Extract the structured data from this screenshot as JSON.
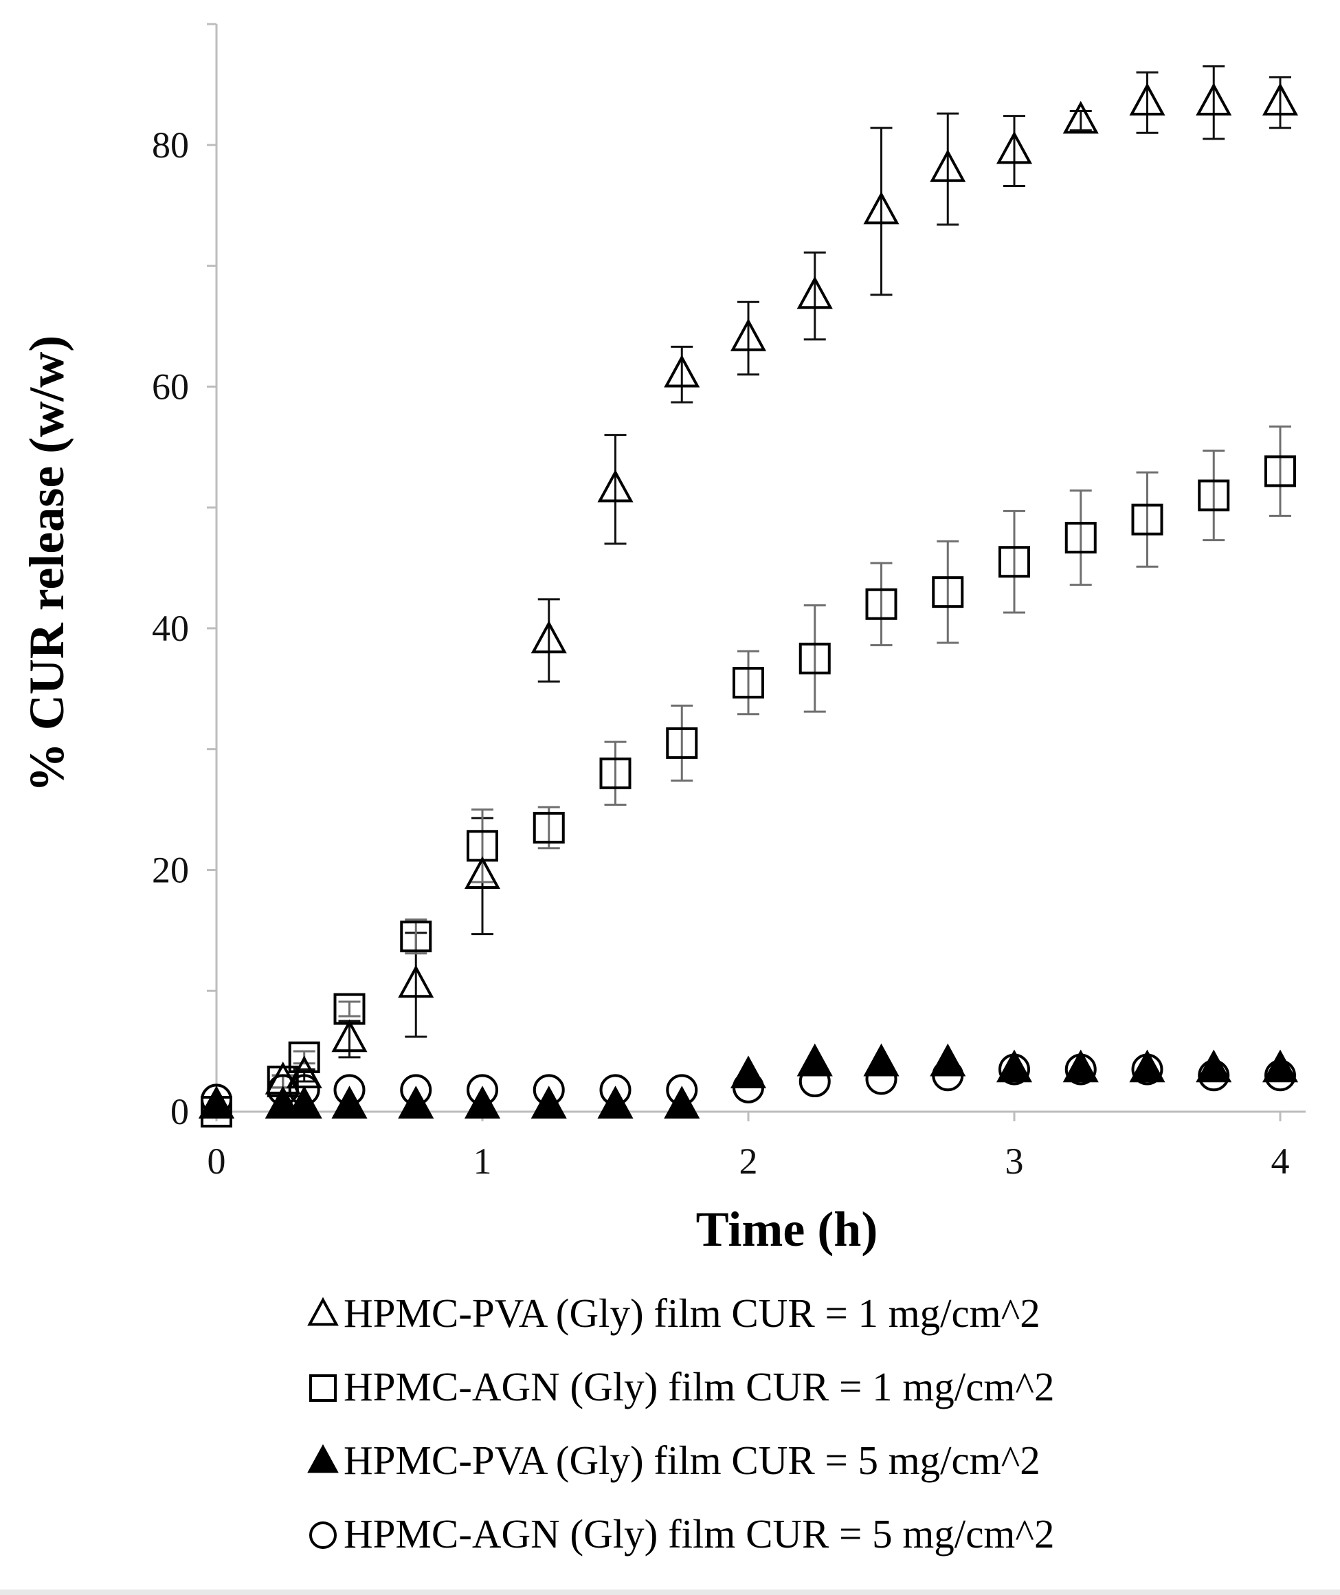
{
  "chart_data": {
    "type": "scatter",
    "title": "",
    "xlabel": "Time (h)",
    "ylabel": "% CUR release (w/w)",
    "xlim": [
      0,
      4
    ],
    "ylim": [
      0,
      90
    ],
    "x_ticks": [
      0,
      1,
      2,
      3,
      4
    ],
    "x_tick_labels": [
      "0",
      "1",
      "2",
      "3",
      "4"
    ],
    "y_ticks": [
      0,
      10,
      20,
      30,
      40,
      50,
      60,
      70,
      80,
      90
    ],
    "y_labeled_ticks": [
      0,
      20,
      40,
      60,
      80
    ],
    "y_tick_labels": [
      "0",
      "20",
      "40",
      "60",
      "80"
    ],
    "legend_position": "bottom",
    "series": [
      {
        "name": "HPMC-PVA (Gly) film CUR = 1 mg/cm^2",
        "symbol": "triangle-open",
        "legend_glyph": "△",
        "color": "#000000",
        "x": [
          0,
          0.25,
          0.33,
          0.5,
          0.75,
          1,
          1.25,
          1.5,
          1.75,
          2,
          2.25,
          2.5,
          2.75,
          3,
          3.25,
          3.5,
          3.75,
          4
        ],
        "y": [
          0.5,
          2.5,
          3,
          6,
          10.5,
          19.5,
          39,
          51.5,
          61,
          64,
          67.5,
          74.5,
          78,
          79.5,
          82,
          83.5,
          83.5,
          83.5
        ],
        "error": [
          0,
          0.5,
          0.5,
          1.5,
          4.3,
          4.8,
          3.4,
          4.5,
          2.3,
          3,
          3.6,
          6.9,
          4.6,
          2.9,
          0.8,
          2.5,
          3,
          2.1
        ]
      },
      {
        "name": "HPMC-AGN (Gly) film CUR = 1 mg/cm^2",
        "symbol": "square-open",
        "legend_glyph": "□",
        "color": "#000000",
        "x": [
          0,
          0.25,
          0.33,
          0.5,
          0.75,
          1,
          1.25,
          1.5,
          1.75,
          2,
          2.25,
          2.5,
          2.75,
          3,
          3.25,
          3.5,
          3.75,
          4
        ],
        "y": [
          0,
          2.5,
          4.5,
          8.5,
          14.5,
          22,
          23.5,
          28,
          30.5,
          35.5,
          37.5,
          42,
          43,
          45.5,
          47.5,
          49,
          51,
          53
        ],
        "error": [
          0,
          0.5,
          0.5,
          0.6,
          1.4,
          3,
          1.7,
          2.6,
          3.1,
          2.6,
          4.4,
          3.4,
          4.2,
          4.2,
          3.9,
          3.9,
          3.7,
          3.7
        ]
      },
      {
        "name": "HPMC-PVA (Gly) film CUR = 5 mg/cm^2",
        "symbol": "triangle-filled",
        "legend_glyph": "▲",
        "color": "#000000",
        "x": [
          0,
          0.25,
          0.33,
          0.5,
          0.75,
          1,
          1.25,
          1.5,
          1.75,
          2,
          2.25,
          2.5,
          2.75,
          3,
          3.25,
          3.5,
          3.75,
          4
        ],
        "y": [
          0.5,
          0.5,
          0.5,
          0.5,
          0.5,
          0.5,
          0.5,
          0.5,
          0.5,
          3,
          4,
          4,
          4,
          3.5,
          3.5,
          3.5,
          3.5,
          3.5
        ],
        "error": [
          0,
          0,
          0,
          0,
          0,
          0,
          0,
          0,
          0,
          0,
          0,
          0,
          0,
          0,
          0,
          0,
          0,
          0
        ]
      },
      {
        "name": "HPMC-AGN (Gly) film CUR = 5 mg/cm^2",
        "symbol": "circle-open",
        "legend_glyph": "○",
        "color": "#000000",
        "x": [
          0,
          0.25,
          0.33,
          0.5,
          0.75,
          1,
          1.25,
          1.5,
          1.75,
          2,
          2.25,
          2.5,
          2.75,
          3,
          3.25,
          3.5,
          3.75,
          4
        ],
        "y": [
          1,
          1.8,
          1.8,
          1.8,
          1.8,
          1.8,
          1.8,
          1.8,
          1.8,
          2,
          2.5,
          2.7,
          3,
          3.5,
          3.5,
          3.5,
          3,
          3
        ],
        "error": [
          0,
          0,
          0,
          0,
          0,
          0,
          0,
          0,
          0,
          0,
          0,
          0,
          0,
          0,
          0,
          0,
          0,
          0
        ]
      }
    ]
  }
}
